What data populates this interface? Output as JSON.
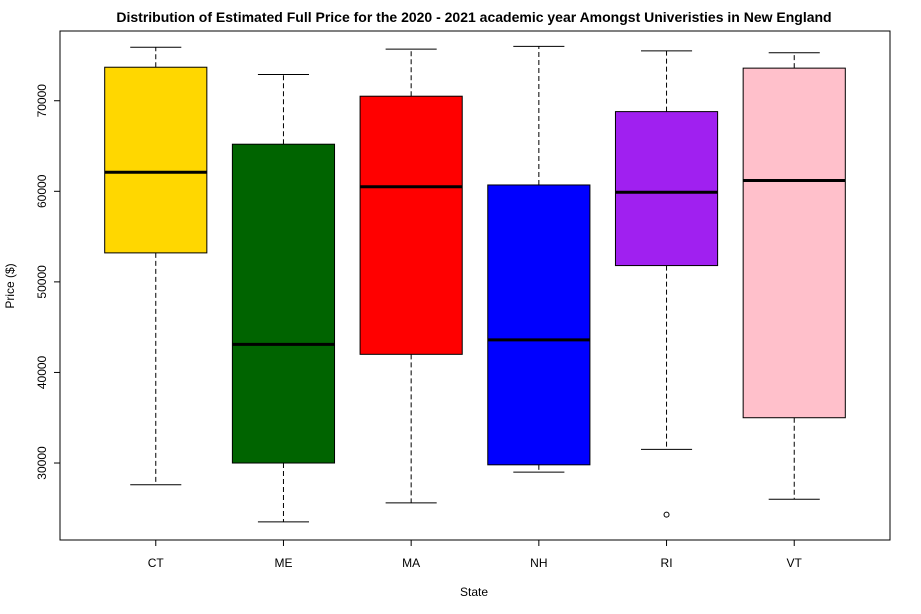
{
  "chart_data": {
    "type": "boxplot",
    "title": "Distribution of Estimated Full Price for the 2020 - 2021 academic year Amongst Univeristies in New England",
    "xlabel": "State",
    "ylabel": "Price ($)",
    "ylim": [
      21500,
      77700
    ],
    "yticks": [
      30000,
      40000,
      50000,
      60000,
      70000
    ],
    "grid": false,
    "categories": [
      "CT",
      "ME",
      "MA",
      "NH",
      "RI",
      "VT"
    ],
    "boxes": [
      {
        "name": "CT",
        "color": "#FFD700",
        "whisker_low": 27600,
        "q1": 53200,
        "median": 62100,
        "q3": 73700,
        "whisker_high": 75900,
        "outliers": []
      },
      {
        "name": "ME",
        "color": "#006400",
        "whisker_low": 23500,
        "q1": 30000,
        "median": 43100,
        "q3": 65200,
        "whisker_high": 72900,
        "outliers": []
      },
      {
        "name": "MA",
        "color": "#FF0000",
        "whisker_low": 25600,
        "q1": 42000,
        "median": 60500,
        "q3": 70500,
        "whisker_high": 75700,
        "outliers": []
      },
      {
        "name": "NH",
        "color": "#0000FF",
        "whisker_low": 29000,
        "q1": 29800,
        "median": 43600,
        "q3": 60700,
        "whisker_high": 76000,
        "outliers": []
      },
      {
        "name": "RI",
        "color": "#A020F0",
        "whisker_low": 31500,
        "q1": 51800,
        "median": 59900,
        "q3": 68800,
        "whisker_high": 75500,
        "outliers": [
          24300
        ]
      },
      {
        "name": "VT",
        "color": "#FFC0CB",
        "whisker_low": 26000,
        "q1": 35000,
        "median": 61200,
        "q3": 73600,
        "whisker_high": 75300,
        "outliers": []
      }
    ]
  }
}
